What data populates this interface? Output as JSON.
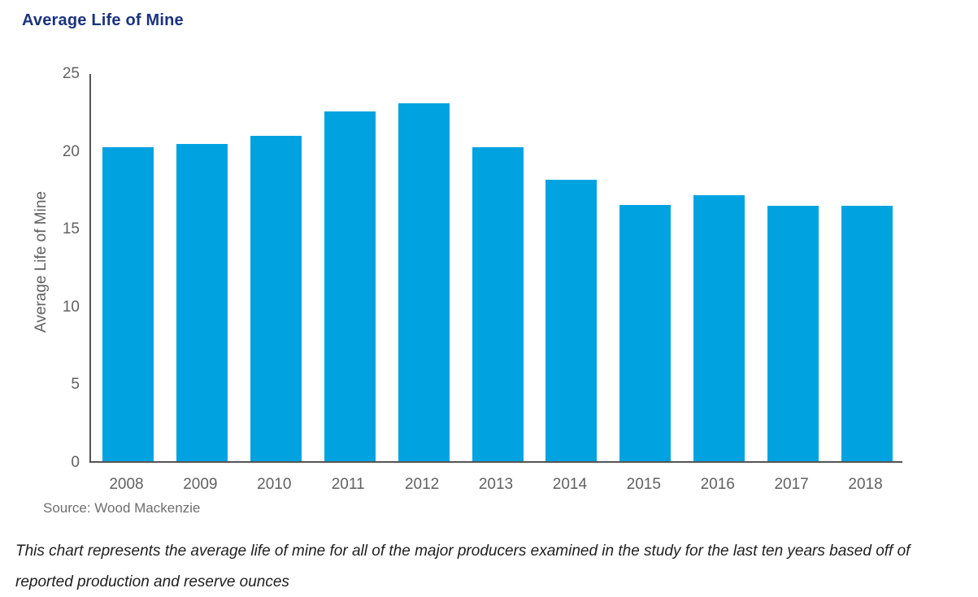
{
  "page": {
    "title": "Average Life of Mine",
    "source": "Source: Wood Mackenzie",
    "caption": {
      "line1": "This chart represents the average life of mine for all of the major producers examined in the study for the last ten years based off of",
      "line2": "reported production and reserve ounces"
    }
  },
  "colors": {
    "bar": "#00a3e0",
    "title_text": "#1b337f",
    "axis_text": "#616161",
    "axis_line": "#545454",
    "source_text": "#6e6e6e",
    "caption_text": "#1f1f1f",
    "background": "#ffffff"
  },
  "chart_data": {
    "type": "bar",
    "title": "Average Life of Mine",
    "categories": [
      "2008",
      "2009",
      "2010",
      "2011",
      "2012",
      "2013",
      "2014",
      "2015",
      "2016",
      "2017",
      "2018"
    ],
    "values": [
      20.2,
      20.4,
      20.9,
      22.5,
      23.0,
      20.2,
      18.1,
      16.5,
      17.1,
      16.4,
      16.4
    ],
    "xlabel": "",
    "ylabel": "Average Life of Mine",
    "ylim": [
      0,
      25
    ],
    "yticks": [
      0,
      5,
      10,
      15,
      20,
      25
    ],
    "grid": false,
    "legend": false
  }
}
